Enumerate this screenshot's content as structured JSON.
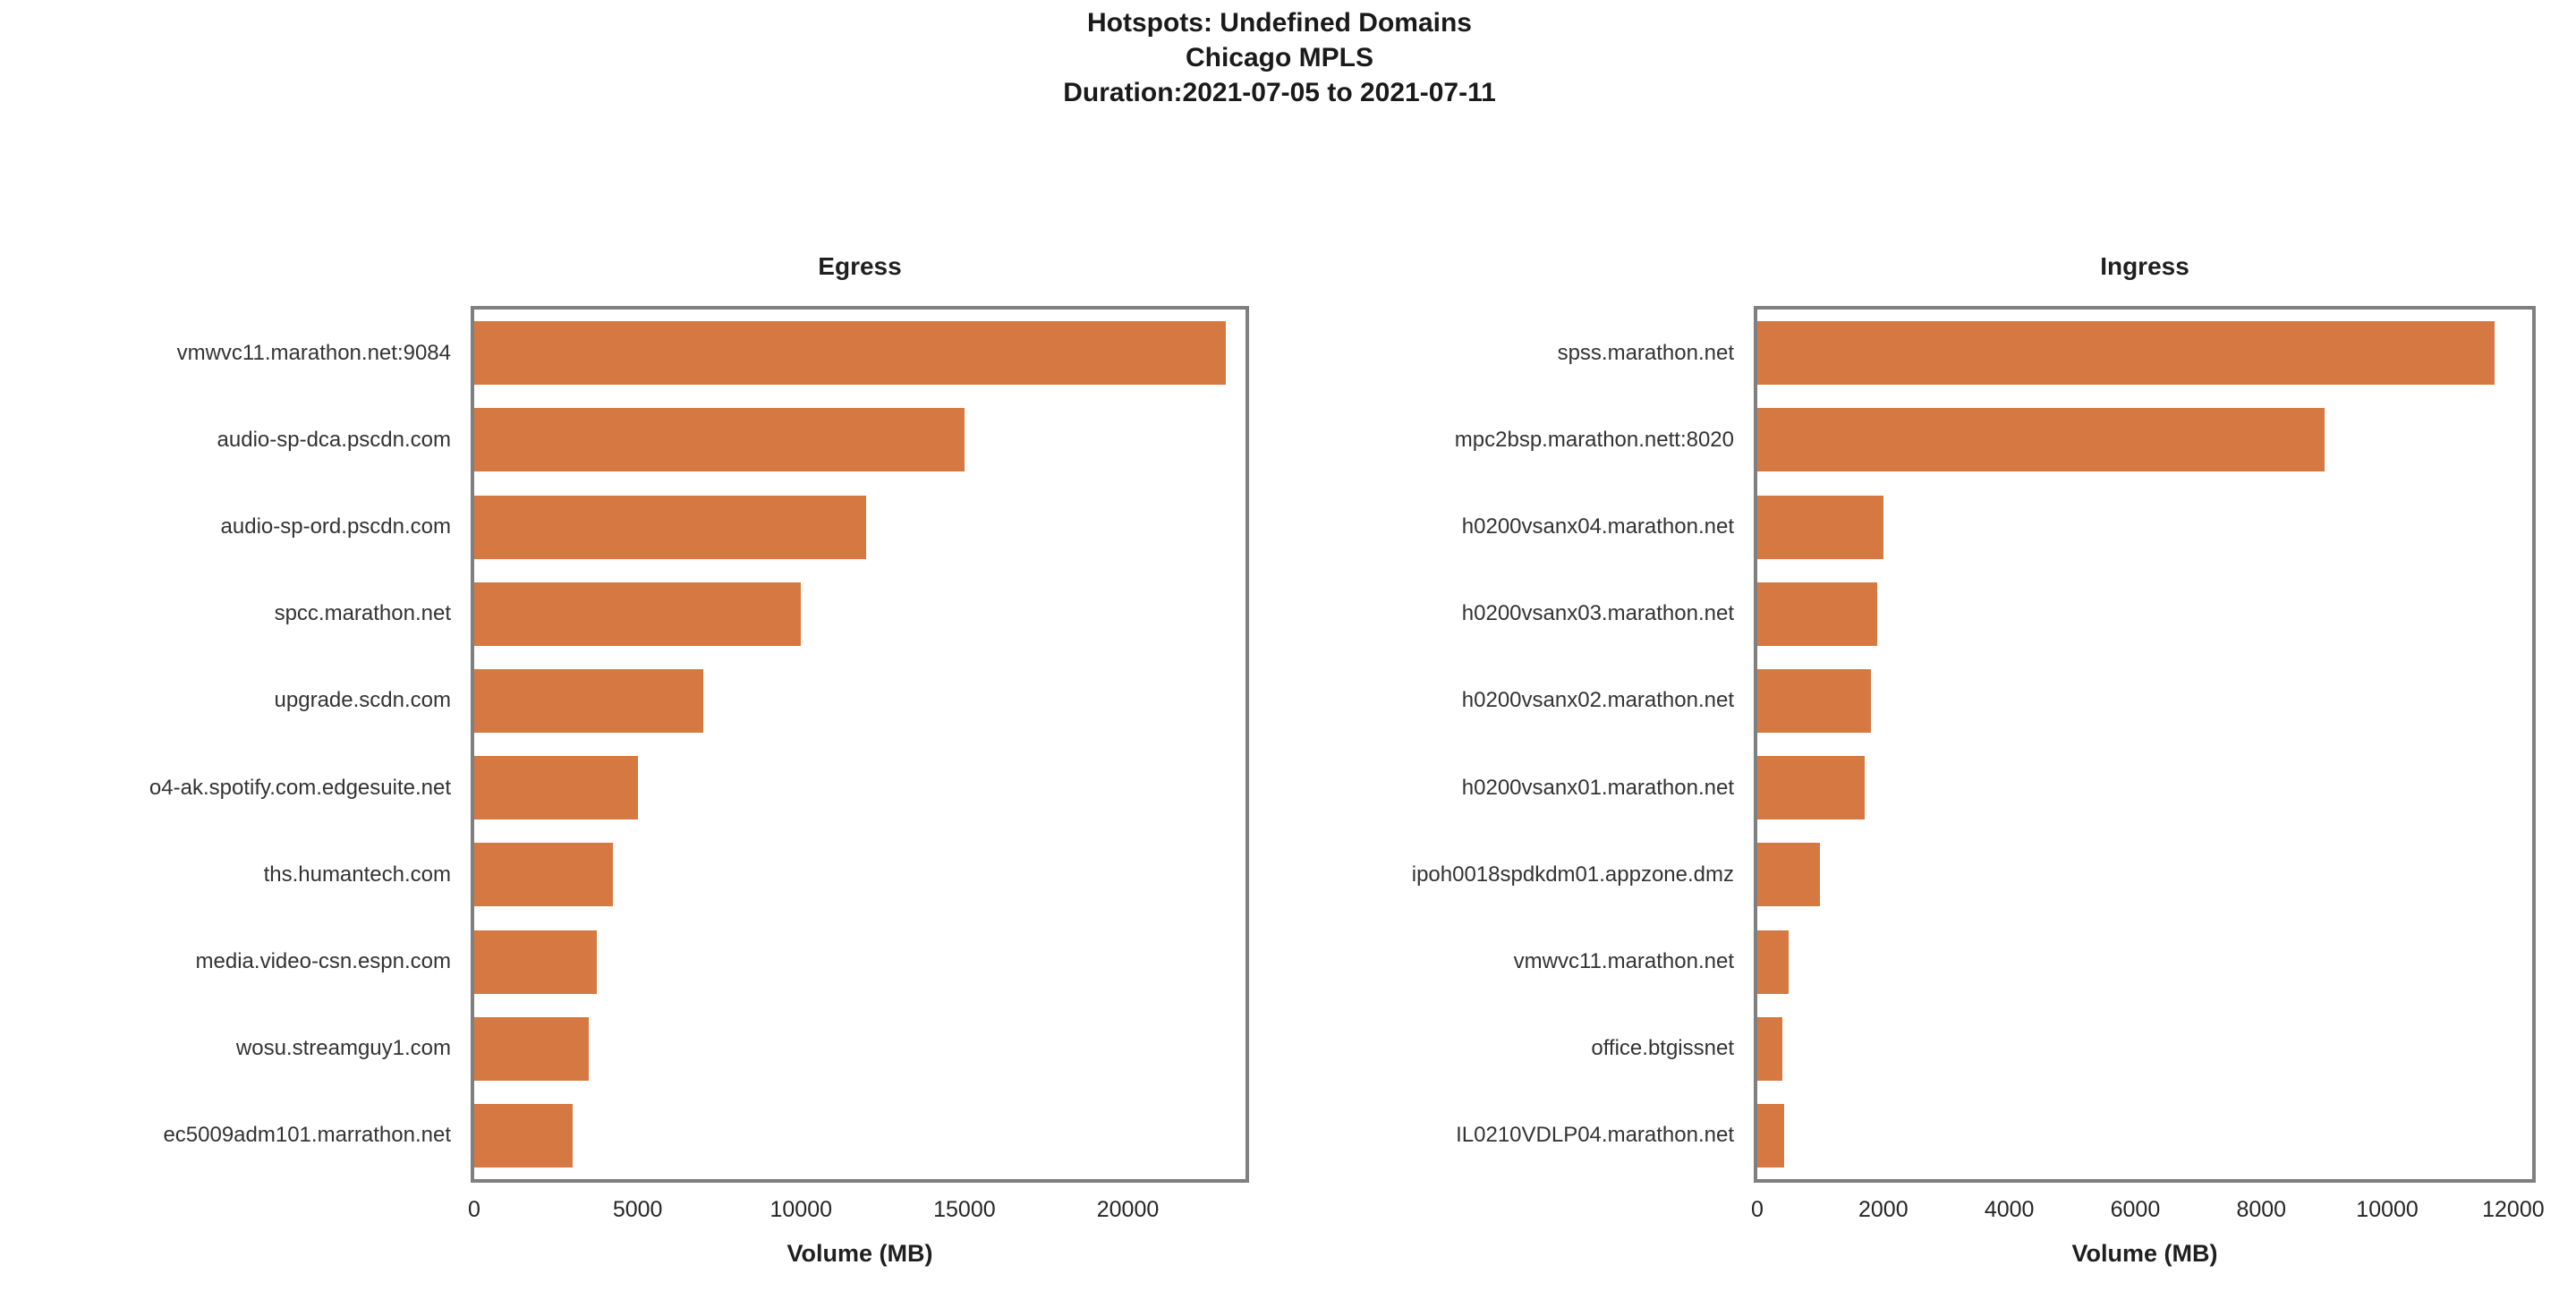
{
  "header": {
    "title_line1": "Hotspots: Undefined Domains",
    "title_line2": "Chicago MPLS",
    "title_line3": "Duration:2021-07-05 to 2021-07-11"
  },
  "colors": {
    "bar": "#d57841",
    "plot_border": "#7f7f7f",
    "text": "#1f1f1f"
  },
  "chart_data": [
    {
      "type": "bar",
      "orientation": "horizontal",
      "title": "Egress",
      "xlabel": "Volume (MB)",
      "categories": [
        "vmwvc11.marathon.net:9084",
        "audio-sp-dca.pscdn.com",
        "audio-sp-ord.pscdn.com",
        "spcc.marathon.net",
        "upgrade.scdn.com",
        "o4-ak.spotify.com.edgesuite.net",
        "ths.humantech.com",
        "media.video-csn.espn.com",
        "wosu.streamguy1.com",
        "ec5009adm101.marrathon.net"
      ],
      "values": [
        23000,
        15000,
        12000,
        10000,
        7000,
        5000,
        4250,
        3750,
        3500,
        3000
      ],
      "xlim": [
        0,
        23600
      ],
      "xticks": [
        0,
        5000,
        10000,
        15000,
        20000
      ],
      "grid": false,
      "legend": null
    },
    {
      "type": "bar",
      "orientation": "horizontal",
      "title": "Ingress",
      "xlabel": "Volume (MB)",
      "categories": [
        "spss.marathon.net",
        "mpc2bsp.marathon.nett:8020",
        "h0200vsanx04.marathon.net",
        "h0200vsanx03.marathon.net",
        "h0200vsanx02.marathon.net",
        "h0200vsanx01.marathon.net",
        "ipoh0018spdkdm01.appzone.dmz",
        "vmwvc11.marathon.net",
        "office.btgissnet",
        "IL0210VDLP04.marathon.net"
      ],
      "values": [
        11700,
        9000,
        2000,
        1900,
        1800,
        1700,
        1000,
        500,
        400,
        430
      ],
      "xlim": [
        0,
        12300
      ],
      "xticks": [
        0,
        2000,
        4000,
        6000,
        8000,
        10000,
        12000
      ],
      "grid": false,
      "legend": null
    }
  ]
}
